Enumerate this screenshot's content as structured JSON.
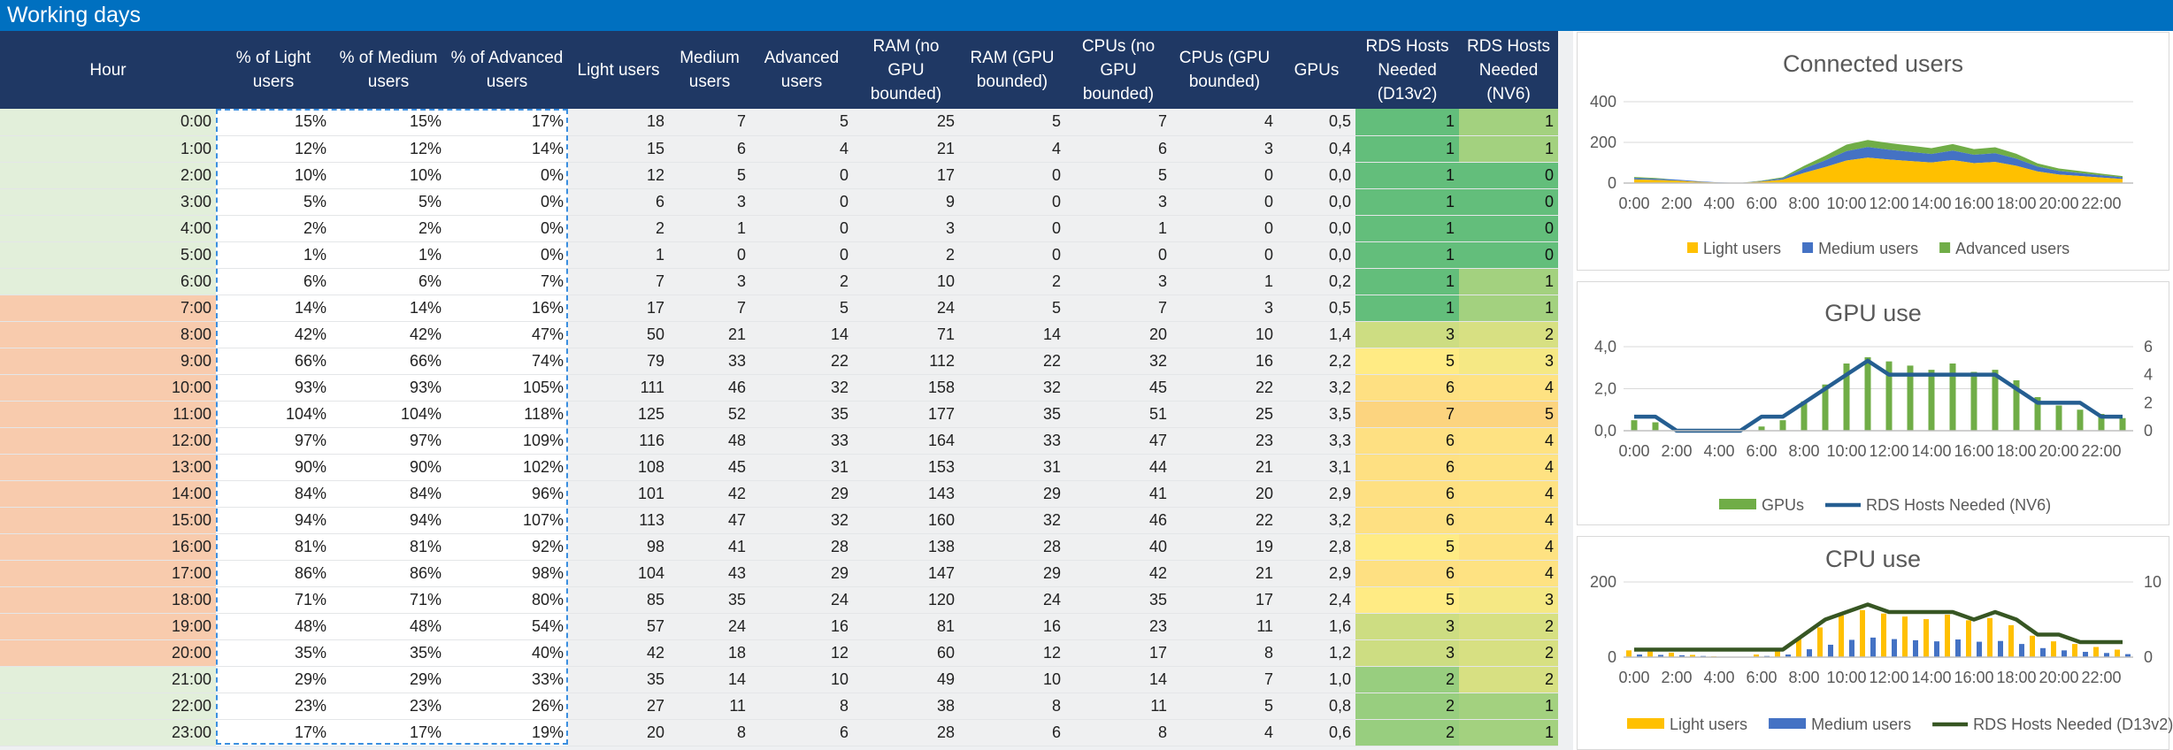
{
  "sheet": {
    "title": "Working days",
    "columns": [
      "Hour",
      "% of Light users",
      "% of Medium users",
      "% of Advanced users",
      "Light users",
      "Medium users",
      "Advanced users",
      "RAM (no GPU bounded)",
      "RAM (GPU bounded)",
      "CPUs (no GPU bounded)",
      "CPUs (GPU bounded)",
      "GPUs",
      "RDS Hosts Needed (D13v2)",
      "RDS Hosts Needed (NV6)"
    ],
    "rows": [
      [
        "0:00",
        "15%",
        "15%",
        "17%",
        "18",
        "7",
        "5",
        "25",
        "5",
        "7",
        "4",
        "0,5",
        "1",
        "1"
      ],
      [
        "1:00",
        "12%",
        "12%",
        "14%",
        "15",
        "6",
        "4",
        "21",
        "4",
        "6",
        "3",
        "0,4",
        "1",
        "1"
      ],
      [
        "2:00",
        "10%",
        "10%",
        "0%",
        "12",
        "5",
        "0",
        "17",
        "0",
        "5",
        "0",
        "0,0",
        "1",
        "0"
      ],
      [
        "3:00",
        "5%",
        "5%",
        "0%",
        "6",
        "3",
        "0",
        "9",
        "0",
        "3",
        "0",
        "0,0",
        "1",
        "0"
      ],
      [
        "4:00",
        "2%",
        "2%",
        "0%",
        "2",
        "1",
        "0",
        "3",
        "0",
        "1",
        "0",
        "0,0",
        "1",
        "0"
      ],
      [
        "5:00",
        "1%",
        "1%",
        "0%",
        "1",
        "0",
        "0",
        "2",
        "0",
        "0",
        "0",
        "0,0",
        "1",
        "0"
      ],
      [
        "6:00",
        "6%",
        "6%",
        "7%",
        "7",
        "3",
        "2",
        "10",
        "2",
        "3",
        "1",
        "0,2",
        "1",
        "1"
      ],
      [
        "7:00",
        "14%",
        "14%",
        "16%",
        "17",
        "7",
        "5",
        "24",
        "5",
        "7",
        "3",
        "0,5",
        "1",
        "1"
      ],
      [
        "8:00",
        "42%",
        "42%",
        "47%",
        "50",
        "21",
        "14",
        "71",
        "14",
        "20",
        "10",
        "1,4",
        "3",
        "2"
      ],
      [
        "9:00",
        "66%",
        "66%",
        "74%",
        "79",
        "33",
        "22",
        "112",
        "22",
        "32",
        "16",
        "2,2",
        "5",
        "3"
      ],
      [
        "10:00",
        "93%",
        "93%",
        "105%",
        "111",
        "46",
        "32",
        "158",
        "32",
        "45",
        "22",
        "3,2",
        "6",
        "4"
      ],
      [
        "11:00",
        "104%",
        "104%",
        "118%",
        "125",
        "52",
        "35",
        "177",
        "35",
        "51",
        "25",
        "3,5",
        "7",
        "5"
      ],
      [
        "12:00",
        "97%",
        "97%",
        "109%",
        "116",
        "48",
        "33",
        "164",
        "33",
        "47",
        "23",
        "3,3",
        "6",
        "4"
      ],
      [
        "13:00",
        "90%",
        "90%",
        "102%",
        "108",
        "45",
        "31",
        "153",
        "31",
        "44",
        "21",
        "3,1",
        "6",
        "4"
      ],
      [
        "14:00",
        "84%",
        "84%",
        "96%",
        "101",
        "42",
        "29",
        "143",
        "29",
        "41",
        "20",
        "2,9",
        "6",
        "4"
      ],
      [
        "15:00",
        "94%",
        "94%",
        "107%",
        "113",
        "47",
        "32",
        "160",
        "32",
        "46",
        "22",
        "3,2",
        "6",
        "4"
      ],
      [
        "16:00",
        "81%",
        "81%",
        "92%",
        "98",
        "41",
        "28",
        "138",
        "28",
        "40",
        "19",
        "2,8",
        "5",
        "4"
      ],
      [
        "17:00",
        "86%",
        "86%",
        "98%",
        "104",
        "43",
        "29",
        "147",
        "29",
        "42",
        "21",
        "2,9",
        "6",
        "4"
      ],
      [
        "18:00",
        "71%",
        "71%",
        "80%",
        "85",
        "35",
        "24",
        "120",
        "24",
        "35",
        "17",
        "2,4",
        "5",
        "3"
      ],
      [
        "19:00",
        "48%",
        "48%",
        "54%",
        "57",
        "24",
        "16",
        "81",
        "16",
        "23",
        "11",
        "1,6",
        "3",
        "2"
      ],
      [
        "20:00",
        "35%",
        "35%",
        "40%",
        "42",
        "18",
        "12",
        "60",
        "12",
        "17",
        "8",
        "1,2",
        "3",
        "2"
      ],
      [
        "21:00",
        "29%",
        "29%",
        "33%",
        "35",
        "14",
        "10",
        "49",
        "10",
        "14",
        "7",
        "1,0",
        "2",
        "2"
      ],
      [
        "22:00",
        "23%",
        "23%",
        "26%",
        "27",
        "11",
        "8",
        "38",
        "8",
        "11",
        "5",
        "0,8",
        "2",
        "1"
      ],
      [
        "23:00",
        "17%",
        "17%",
        "19%",
        "20",
        "8",
        "6",
        "28",
        "6",
        "8",
        "4",
        "0,6",
        "2",
        "1"
      ]
    ],
    "colors": {
      "title_bar": "#0070c0",
      "header": "#1f3864",
      "hour_offpeak": "#e2efda",
      "hour_peak": "#f8cbad",
      "color_scale": [
        "#63be7b",
        "#cddd82",
        "#ffeb84",
        "#fcd47f"
      ]
    }
  },
  "chart_data": [
    {
      "type": "area",
      "title": "Connected users",
      "x": [
        "0:00",
        "1:00",
        "2:00",
        "3:00",
        "4:00",
        "5:00",
        "6:00",
        "7:00",
        "8:00",
        "9:00",
        "10:00",
        "11:00",
        "12:00",
        "13:00",
        "14:00",
        "15:00",
        "16:00",
        "17:00",
        "18:00",
        "19:00",
        "20:00",
        "21:00",
        "22:00",
        "23:00"
      ],
      "x_ticks": [
        "0:00",
        "2:00",
        "4:00",
        "6:00",
        "8:00",
        "10:00",
        "12:00",
        "14:00",
        "16:00",
        "18:00",
        "20:00",
        "22:00"
      ],
      "stacked": true,
      "series": [
        {
          "name": "Light users",
          "color": "#ffc000",
          "values": [
            18,
            15,
            12,
            6,
            2,
            1,
            7,
            17,
            50,
            79,
            111,
            125,
            116,
            108,
            101,
            113,
            98,
            104,
            85,
            57,
            42,
            35,
            27,
            20
          ]
        },
        {
          "name": "Medium users",
          "color": "#4472c4",
          "values": [
            7,
            6,
            5,
            3,
            1,
            0,
            3,
            7,
            21,
            33,
            46,
            52,
            48,
            45,
            42,
            47,
            41,
            43,
            35,
            24,
            18,
            14,
            11,
            8
          ]
        },
        {
          "name": "Advanced users",
          "color": "#70ad47",
          "values": [
            5,
            4,
            0,
            0,
            0,
            0,
            2,
            5,
            14,
            22,
            32,
            35,
            33,
            31,
            29,
            32,
            28,
            29,
            24,
            16,
            12,
            10,
            8,
            6
          ]
        }
      ],
      "y_ticks": [
        "0",
        "200",
        "400"
      ],
      "ylim": [
        0,
        400
      ],
      "grid": true,
      "legend": "bottom"
    },
    {
      "type": "bar",
      "title": "GPU use",
      "x": [
        "0:00",
        "1:00",
        "2:00",
        "3:00",
        "4:00",
        "5:00",
        "6:00",
        "7:00",
        "8:00",
        "9:00",
        "10:00",
        "11:00",
        "12:00",
        "13:00",
        "14:00",
        "15:00",
        "16:00",
        "17:00",
        "18:00",
        "19:00",
        "20:00",
        "21:00",
        "22:00",
        "23:00"
      ],
      "x_ticks": [
        "0:00",
        "2:00",
        "4:00",
        "6:00",
        "8:00",
        "10:00",
        "12:00",
        "14:00",
        "16:00",
        "18:00",
        "20:00",
        "22:00"
      ],
      "series": [
        {
          "name": "GPUs",
          "type": "bar",
          "axis": "left",
          "color": "#70ad47",
          "values": [
            0.5,
            0.4,
            0,
            0,
            0,
            0,
            0.2,
            0.5,
            1.4,
            2.2,
            3.2,
            3.5,
            3.3,
            3.1,
            2.9,
            3.2,
            2.8,
            2.9,
            2.4,
            1.6,
            1.2,
            1.0,
            0.8,
            0.6
          ]
        },
        {
          "name": "RDS Hosts Needed (NV6)",
          "type": "line",
          "axis": "right",
          "color": "#255e91",
          "values": [
            1,
            1,
            0,
            0,
            0,
            0,
            1,
            1,
            2,
            3,
            4,
            5,
            4,
            4,
            4,
            4,
            4,
            4,
            3,
            2,
            2,
            2,
            1,
            1
          ]
        }
      ],
      "y_ticks": [
        "0,0",
        "2,0",
        "4,0"
      ],
      "ylim": [
        0,
        4
      ],
      "y2_ticks": [
        "0",
        "2",
        "4",
        "6"
      ],
      "y2lim": [
        0,
        6
      ],
      "grid": true,
      "legend": "bottom"
    },
    {
      "type": "bar",
      "title": "CPU use",
      "x": [
        "0:00",
        "1:00",
        "2:00",
        "3:00",
        "4:00",
        "5:00",
        "6:00",
        "7:00",
        "8:00",
        "9:00",
        "10:00",
        "11:00",
        "12:00",
        "13:00",
        "14:00",
        "15:00",
        "16:00",
        "17:00",
        "18:00",
        "19:00",
        "20:00",
        "21:00",
        "22:00",
        "23:00"
      ],
      "x_ticks": [
        "0:00",
        "2:00",
        "4:00",
        "6:00",
        "8:00",
        "10:00",
        "12:00",
        "14:00",
        "16:00",
        "18:00",
        "20:00",
        "22:00"
      ],
      "series": [
        {
          "name": "Light users",
          "type": "bar",
          "axis": "left",
          "color": "#ffc000",
          "values": [
            18,
            15,
            12,
            6,
            2,
            1,
            7,
            17,
            50,
            79,
            111,
            125,
            116,
            108,
            101,
            113,
            98,
            104,
            85,
            57,
            42,
            35,
            27,
            20
          ]
        },
        {
          "name": "Medium users",
          "type": "bar",
          "axis": "left",
          "color": "#4472c4",
          "values": [
            7,
            6,
            5,
            3,
            1,
            0,
            3,
            7,
            21,
            33,
            46,
            52,
            48,
            45,
            42,
            47,
            41,
            43,
            35,
            24,
            18,
            14,
            11,
            8
          ]
        },
        {
          "name": "RDS Hosts Needed (D13v2)",
          "type": "line",
          "axis": "right",
          "color": "#375623",
          "values": [
            1,
            1,
            1,
            1,
            1,
            1,
            1,
            1,
            3,
            5,
            6,
            7,
            6,
            6,
            6,
            6,
            5,
            6,
            5,
            3,
            3,
            2,
            2,
            2
          ]
        }
      ],
      "y_ticks": [
        "0",
        "200"
      ],
      "ylim": [
        0,
        200
      ],
      "y2_ticks": [
        "0",
        "10"
      ],
      "y2lim": [
        0,
        10
      ],
      "grid": true,
      "legend": "bottom"
    }
  ]
}
